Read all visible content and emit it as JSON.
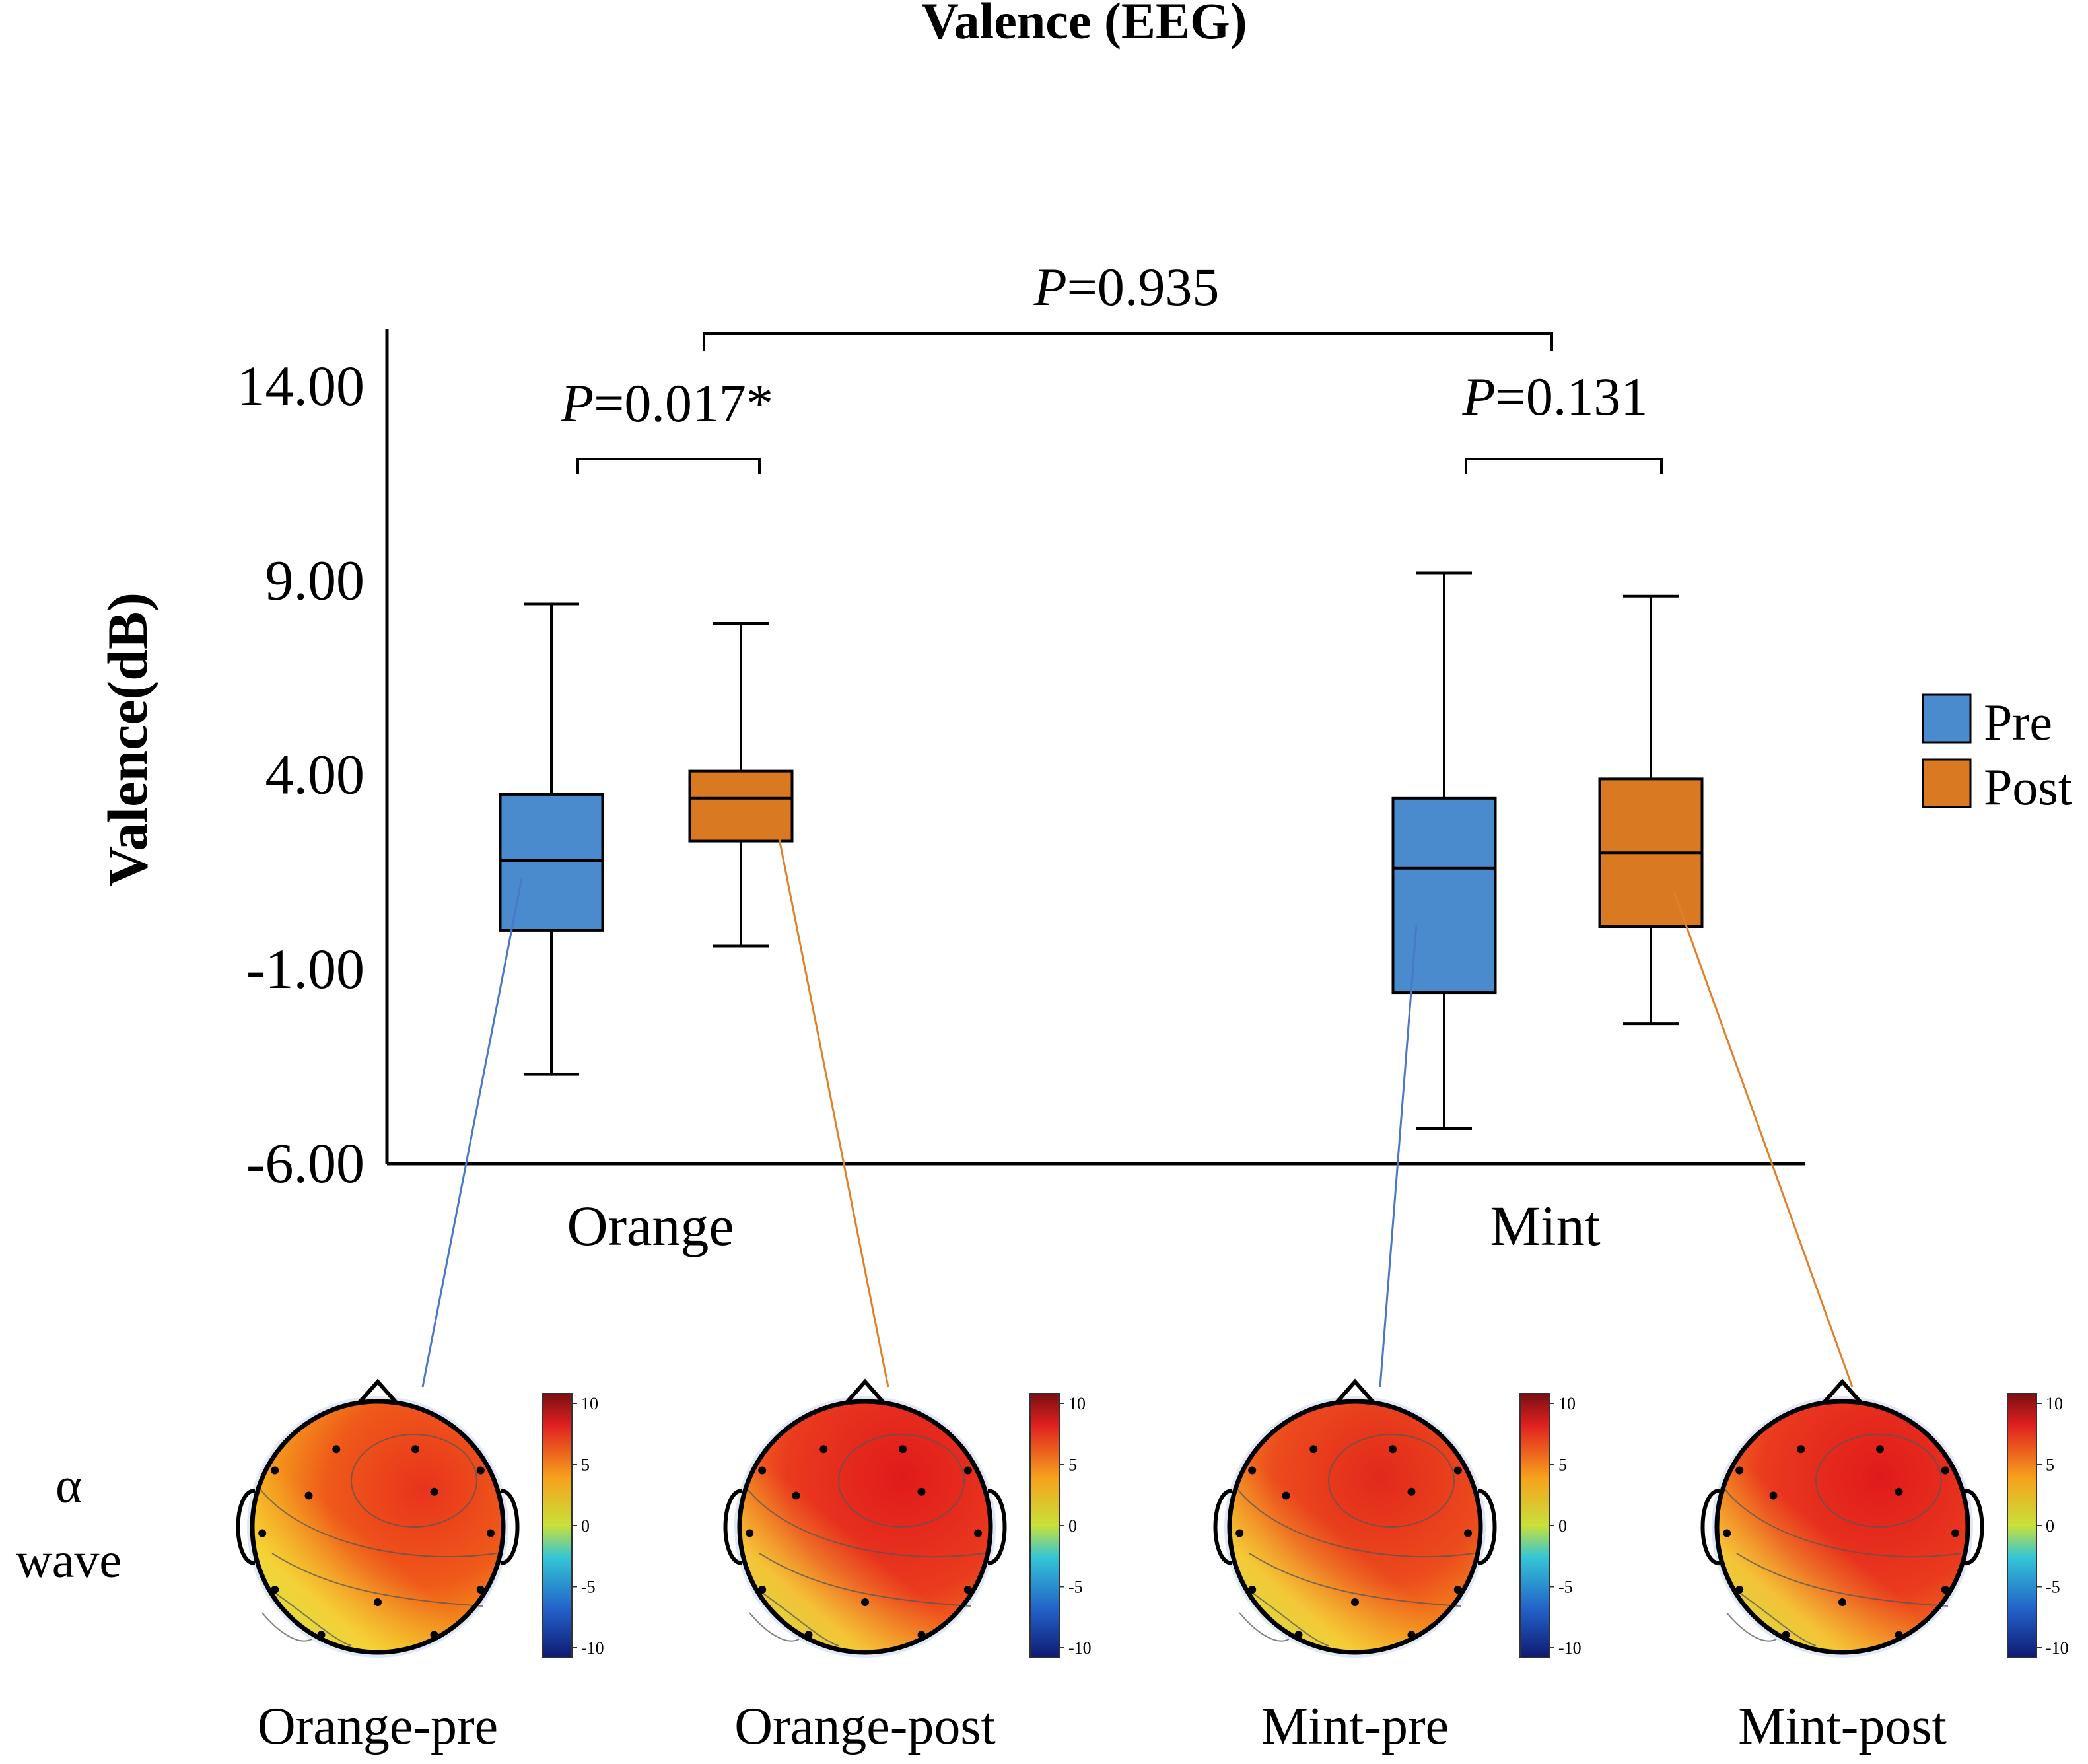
{
  "chart_data": {
    "type": "box",
    "title": "Valence (EEG)",
    "ylabel": "Valence(dB)",
    "xlabel": "",
    "ylim": [
      -6.0,
      15.5
    ],
    "yticks": [
      14.0,
      9.0,
      4.0,
      -1.0,
      -6.0
    ],
    "ytick_labels": [
      "14.00",
      "9.00",
      "4.00",
      "-1.00",
      "-6.00"
    ],
    "categories": [
      "Orange",
      "Mint"
    ],
    "series": [
      {
        "name": "Pre",
        "color": "#4a8bcd",
        "boxes": [
          {
            "category": "Orange",
            "min": -3.7,
            "q1": 0.0,
            "median": 1.8,
            "q3": 3.5,
            "max": 8.4
          },
          {
            "category": "Mint",
            "min": -5.1,
            "q1": -1.6,
            "median": 1.6,
            "q3": 3.4,
            "max": 9.2
          }
        ]
      },
      {
        "name": "Post",
        "color": "#d97a22",
        "boxes": [
          {
            "category": "Orange",
            "min": -0.4,
            "q1": 2.3,
            "median": 3.4,
            "q3": 4.1,
            "max": 7.9
          },
          {
            "category": "Mint",
            "min": -2.4,
            "q1": 0.1,
            "median": 2.0,
            "q3": 3.9,
            "max": 8.6
          }
        ]
      }
    ],
    "legend": {
      "position": "right",
      "entries": [
        "Pre",
        "Post"
      ]
    },
    "annotations": [
      {
        "label_italic": "P",
        "label_rest": "=0.017*",
        "between": [
          "Orange Pre",
          "Orange Post"
        ]
      },
      {
        "label_italic": "P",
        "label_rest": "=0.131",
        "between": [
          "Mint Pre",
          "Mint Post"
        ]
      },
      {
        "label_italic": "P",
        "label_rest": "=0.935",
        "between": [
          "Orange",
          "Mint"
        ]
      }
    ]
  },
  "topomaps": {
    "row_label_symbol": "α",
    "row_label_word": "wave",
    "colorbar_ticks": [
      "10",
      "5",
      "0",
      "-5",
      "-10"
    ],
    "colorbar_range": [
      -10,
      10
    ],
    "maps": [
      {
        "label": "Orange-pre",
        "peak_value": 6.5
      },
      {
        "label": "Orange-post",
        "peak_value": 9.0
      },
      {
        "label": "Mint-pre",
        "peak_value": 7.5
      },
      {
        "label": "Mint-post",
        "peak_value": 9.0
      }
    ]
  },
  "colors": {
    "pre": "#4a8bcd",
    "post": "#d97a22",
    "axis": "#000000"
  }
}
